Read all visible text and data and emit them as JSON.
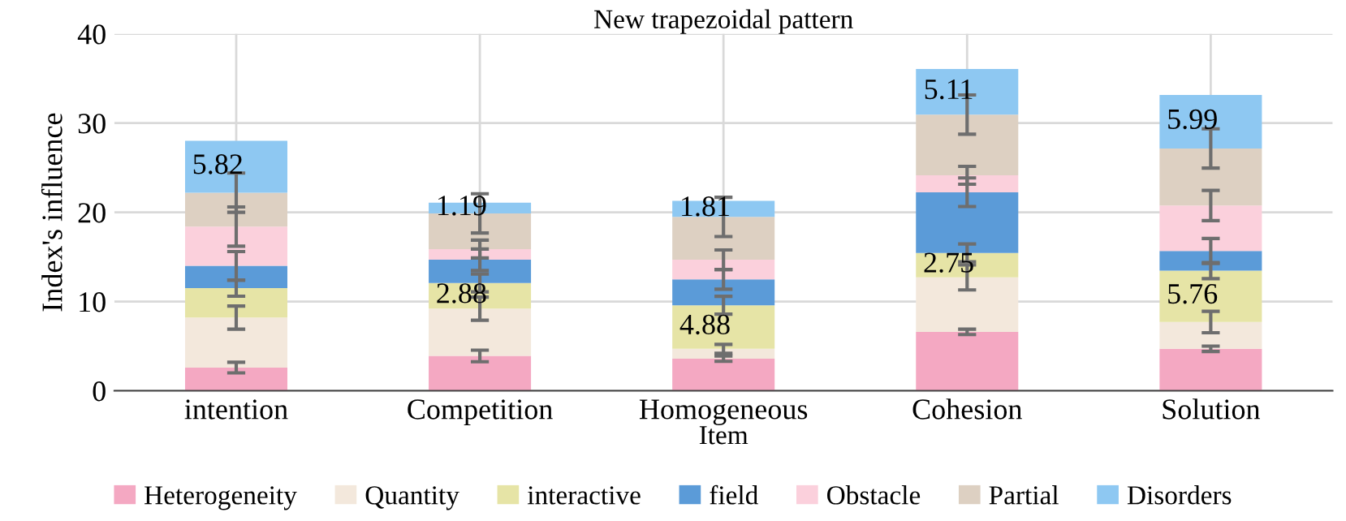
{
  "chart_data": {
    "type": "bar",
    "stacked": true,
    "title": "New trapezoidal pattern",
    "xlabel": "Item",
    "ylabel": "Index's influence",
    "categories": [
      "intention",
      "Competition",
      "Homogeneous",
      "Cohesion",
      "Solution"
    ],
    "series": [
      {
        "name": "Heterogeneity",
        "color": "#f4a8c2",
        "values": [
          2.6,
          3.9,
          3.6,
          6.6,
          4.7
        ],
        "errors": [
          0.6,
          0.65,
          0.3,
          0.3,
          0.3
        ]
      },
      {
        "name": "Quantity",
        "color": "#f3e8dc",
        "values": [
          5.6,
          5.3,
          1.1,
          6.1,
          3.0
        ],
        "errors": [
          1.3,
          1.3,
          0.5,
          1.4,
          1.2
        ]
      },
      {
        "name": "interactive",
        "color": "#e6e4a6",
        "values": [
          3.3,
          2.88,
          4.88,
          2.75,
          5.76
        ],
        "errors": [
          0.9,
          1.0,
          1.0,
          1.0,
          0.9
        ],
        "value_labels": [
          null,
          "2.88",
          "4.88",
          "2.75",
          "5.76"
        ]
      },
      {
        "name": "field",
        "color": "#5b9bd8",
        "values": [
          2.5,
          2.6,
          2.9,
          6.8,
          2.2
        ],
        "errors": [
          1.6,
          1.2,
          1.1,
          1.6,
          1.4
        ]
      },
      {
        "name": "Obstacle",
        "color": "#fbd0dc",
        "values": [
          4.4,
          1.2,
          2.2,
          1.9,
          5.1
        ],
        "errors": [
          2.2,
          1.0,
          1.1,
          1.0,
          1.7
        ]
      },
      {
        "name": "Partial",
        "color": "#ddd0c2",
        "values": [
          3.8,
          4.0,
          4.8,
          6.8,
          6.4
        ],
        "errors": [
          2.2,
          2.2,
          2.2,
          2.2,
          2.2
        ]
      },
      {
        "name": "Disorders",
        "color": "#8ec8f2",
        "values": [
          5.82,
          1.19,
          1.81,
          5.11,
          5.99
        ],
        "value_labels": [
          "5.82",
          "1.19",
          "1.81",
          "5.11",
          "5.99"
        ]
      }
    ],
    "ylim": [
      0,
      40
    ],
    "yticks": [
      0,
      10,
      20,
      30,
      40
    ],
    "grid": true,
    "legend": "bottom"
  }
}
